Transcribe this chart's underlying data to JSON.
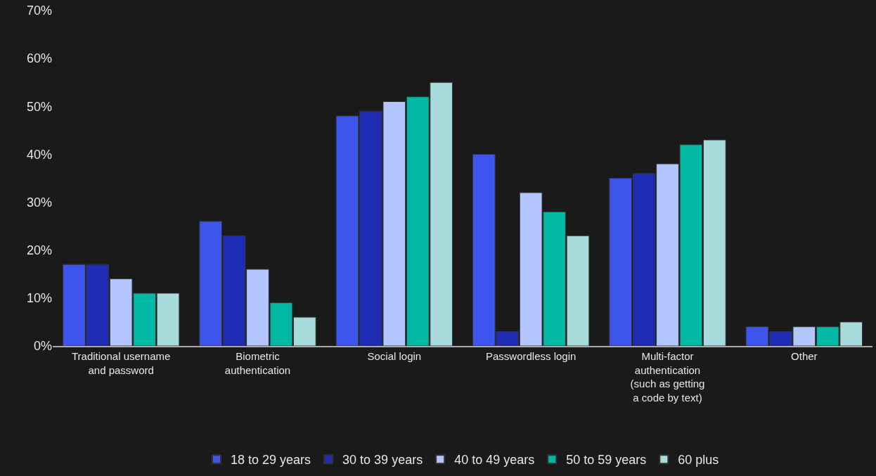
{
  "chart_data": {
    "type": "bar",
    "categories": [
      "Traditional username\nand password",
      "Biometric\nauthentication",
      "Social login",
      "Passwordless login",
      "Multi-factor\nauthentication\n(such as getting\na code by text)",
      "Other"
    ],
    "series": [
      {
        "name": "18 to 29 years",
        "color": "#3d55ec",
        "values": [
          17,
          26,
          48,
          40,
          35,
          4
        ]
      },
      {
        "name": "30 to 39 years",
        "color": "#1e2bb3",
        "values": [
          17,
          23,
          49,
          3,
          36,
          3
        ]
      },
      {
        "name": "40 to 49 years",
        "color": "#b3c6ff",
        "values": [
          14,
          16,
          51,
          32,
          38,
          4
        ]
      },
      {
        "name": "50 to 59 years",
        "color": "#00b8a3",
        "values": [
          11,
          9,
          52,
          28,
          42,
          4
        ]
      },
      {
        "name": "60 plus",
        "color": "#a8dbdb",
        "values": [
          11,
          6,
          55,
          23,
          43,
          5
        ]
      }
    ],
    "ylim": [
      0,
      70
    ],
    "yticks": [
      {
        "value": 0,
        "label": "0%"
      },
      {
        "value": 10,
        "label": "10%"
      },
      {
        "value": 20,
        "label": "20%"
      },
      {
        "value": 30,
        "label": "30%"
      },
      {
        "value": 40,
        "label": "40%"
      },
      {
        "value": 50,
        "label": "50%"
      },
      {
        "value": 60,
        "label": "60%"
      },
      {
        "value": 70,
        "label": "70%"
      }
    ],
    "grid": false,
    "legend": "bottom"
  }
}
